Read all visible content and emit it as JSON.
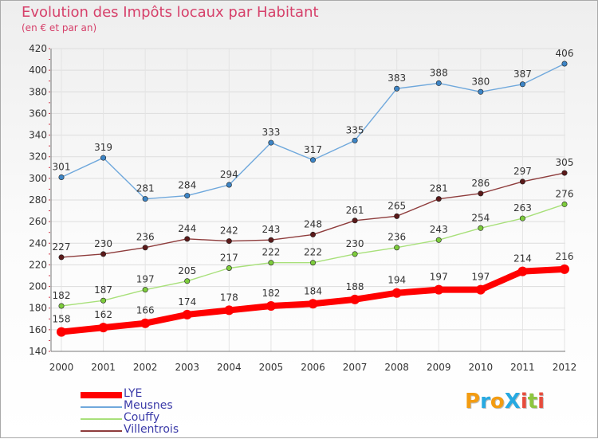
{
  "title": "Evolution des Impôts locaux par Habitant",
  "subtitle": "(en € et par an)",
  "logo": {
    "text": "ProXiti",
    "letters": [
      {
        "ch": "P",
        "color": "#f39c12"
      },
      {
        "ch": "r",
        "color": "#27a9e1"
      },
      {
        "ch": "o",
        "color": "#f39c12"
      },
      {
        "ch": "X",
        "color": "#27a9e1"
      },
      {
        "ch": "i",
        "color": "#e74c3c"
      },
      {
        "ch": "t",
        "color": "#8dc63f"
      },
      {
        "ch": "i",
        "color": "#e74c3c"
      }
    ]
  },
  "chart_data": {
    "type": "line",
    "title": "Evolution des Impôts locaux par Habitant",
    "subtitle": "(en € et par an)",
    "x": [
      "2000",
      "2001",
      "2002",
      "2003",
      "2004",
      "2005",
      "2006",
      "2007",
      "2008",
      "2009",
      "2010",
      "2011",
      "2012"
    ],
    "ylim": [
      140,
      420
    ],
    "yticks": [
      140,
      160,
      180,
      200,
      220,
      240,
      260,
      280,
      300,
      320,
      340,
      360,
      380,
      400,
      420
    ],
    "grid": true,
    "legend_position": "bottom-left",
    "series": [
      {
        "name": "LYE",
        "color": "#ff0000",
        "marker_color": "#ff0000",
        "thick": true,
        "values": [
          158,
          162,
          166,
          174,
          178,
          182,
          184,
          188,
          194,
          197,
          197,
          214,
          216
        ]
      },
      {
        "name": "Meusnes",
        "color": "#6fa8dc",
        "marker_color": "#3d85c6",
        "thick": false,
        "values": [
          301,
          319,
          281,
          284,
          294,
          333,
          317,
          335,
          383,
          388,
          380,
          387,
          406
        ]
      },
      {
        "name": "Couffy",
        "color": "#a8e07a",
        "marker_color": "#7dcc3c",
        "thick": false,
        "values": [
          182,
          187,
          197,
          205,
          217,
          222,
          222,
          230,
          236,
          243,
          254,
          263,
          276
        ]
      },
      {
        "name": "Villentrois",
        "color": "#8e3c3c",
        "marker_color": "#5b1a1a",
        "thick": false,
        "values": [
          227,
          230,
          236,
          244,
          242,
          243,
          248,
          261,
          265,
          281,
          286,
          297,
          305
        ]
      }
    ]
  }
}
